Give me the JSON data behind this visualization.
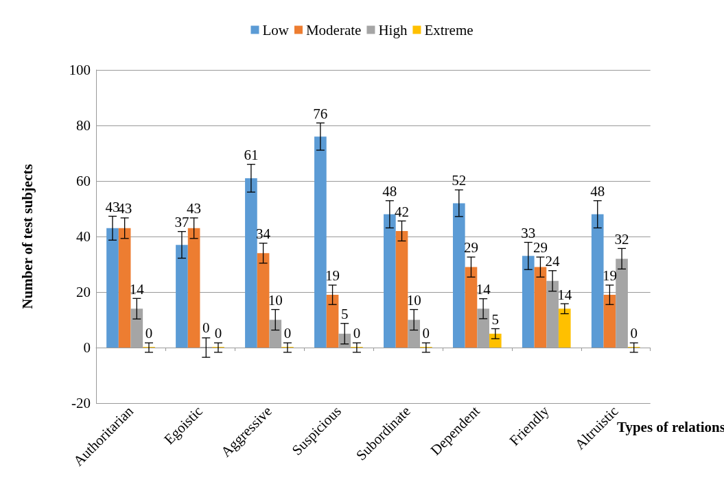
{
  "chart_data": {
    "type": "bar",
    "xlabel": "Types of relations",
    "ylabel": "Number of test subjects",
    "categories": [
      "Authoritarian",
      "Egoistic",
      "Aggressive",
      "Suspicious",
      "Subordinate",
      "Dependent",
      "Friendly",
      "Altruistic"
    ],
    "series": [
      {
        "name": "Low",
        "color": "#5b9bd5",
        "values": [
          43,
          37,
          61,
          76,
          48,
          52,
          33,
          48
        ],
        "value_labels": [
          "43",
          "37",
          "61",
          "76",
          "48",
          "52",
          "33",
          "48"
        ],
        "errors": [
          4.3,
          4.8,
          5,
          4.9,
          4.9,
          4.8,
          4.9,
          4.9
        ]
      },
      {
        "name": "Moderate",
        "color": "#ed7d31",
        "values": [
          43,
          43,
          34,
          19,
          42,
          29,
          29,
          19
        ],
        "value_labels": [
          "43",
          "43",
          "34",
          "19",
          "42",
          "29",
          "29",
          "19"
        ],
        "errors": [
          3.7,
          3.7,
          3.6,
          3.5,
          3.6,
          3.6,
          3.6,
          3.5
        ]
      },
      {
        "name": "High",
        "color": "#a5a5a5",
        "values": [
          14,
          0,
          10,
          5,
          10,
          14,
          24,
          32
        ],
        "value_labels": [
          "14",
          "0",
          "10",
          "5",
          "10",
          "14",
          "24",
          "32"
        ],
        "errors": [
          3.7,
          3.5,
          3.7,
          3.7,
          3.7,
          3.6,
          3.7,
          3.7
        ]
      },
      {
        "name": "Extreme",
        "color": "#ffc000",
        "values": [
          0,
          0,
          0,
          0,
          0,
          5,
          14,
          0
        ],
        "value_labels": [
          "0",
          "0",
          "0",
          "0",
          "0",
          "5",
          "14",
          "0"
        ],
        "errors": [
          1.7,
          1.7,
          1.7,
          1.7,
          1.7,
          1.8,
          1.8,
          1.7
        ]
      }
    ],
    "ylim": [
      -20,
      100
    ],
    "yticks": [
      -20,
      0,
      20,
      40,
      60,
      80,
      100
    ],
    "grid": "y",
    "legend": "top"
  }
}
